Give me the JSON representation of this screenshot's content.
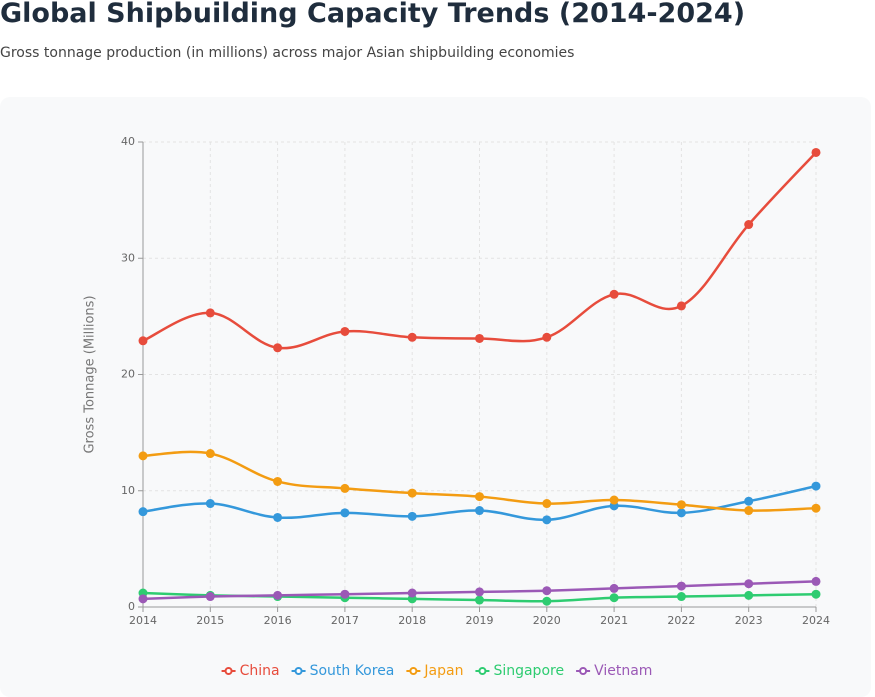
{
  "chart_data": {
    "type": "line",
    "title": "Global Shipbuilding Capacity Trends (2014-2024)",
    "subtitle": "Gross tonnage production (in millions) across major Asian shipbuilding economies",
    "y_label": "Gross Tonnage (Millions)",
    "categories": [
      "2014",
      "2015",
      "2016",
      "2017",
      "2018",
      "2019",
      "2020",
      "2021",
      "2022",
      "2023",
      "2024"
    ],
    "series": [
      {
        "name": "China",
        "color": "#e74c3c",
        "values": [
          22.9,
          25.3,
          22.3,
          23.7,
          23.2,
          23.1,
          23.2,
          26.9,
          25.9,
          32.9,
          39.1
        ]
      },
      {
        "name": "South Korea",
        "color": "#3498db",
        "values": [
          8.2,
          8.9,
          7.7,
          8.1,
          7.8,
          8.3,
          7.5,
          8.7,
          8.1,
          9.1,
          10.4
        ]
      },
      {
        "name": "Japan",
        "color": "#f39c12",
        "values": [
          13.0,
          13.2,
          10.8,
          10.2,
          9.8,
          9.5,
          8.9,
          9.2,
          8.8,
          8.3,
          8.5
        ]
      },
      {
        "name": "Singapore",
        "color": "#2ecc71",
        "values": [
          1.2,
          1.0,
          0.9,
          0.8,
          0.7,
          0.6,
          0.5,
          0.8,
          0.9,
          1.0,
          1.1
        ]
      },
      {
        "name": "Vietnam",
        "color": "#9b59b6",
        "values": [
          0.7,
          0.9,
          1.0,
          1.1,
          1.2,
          1.3,
          1.4,
          1.6,
          1.8,
          2.0,
          2.2
        ]
      }
    ],
    "ylim": [
      0,
      40
    ],
    "yticks": [
      0,
      10,
      20,
      30,
      40
    ],
    "grid": true,
    "legend": "bottom"
  }
}
